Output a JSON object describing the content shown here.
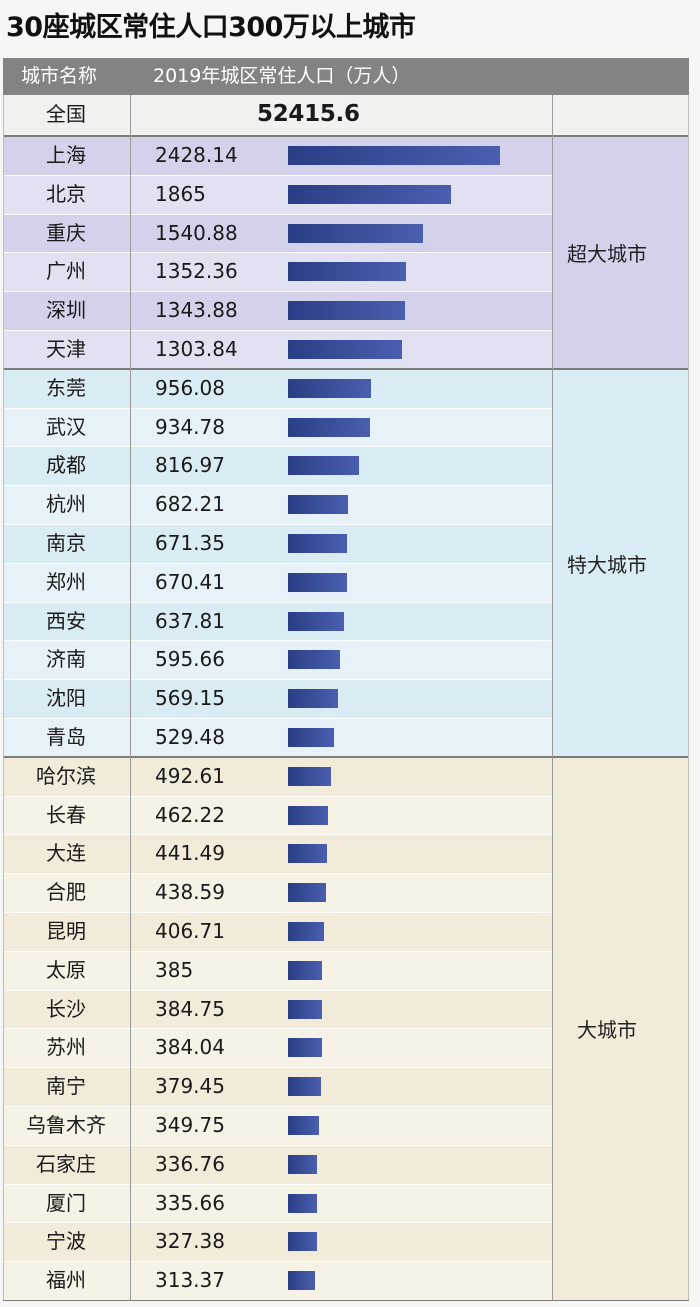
{
  "title": "30座城区常住人口300万以上城市",
  "header": {
    "city_col": "城市名称",
    "pop_col": "2019年城区常住人口（万人）"
  },
  "total": {
    "label": "全国",
    "value": "52415.6"
  },
  "colors": {
    "bar": "#34498f",
    "super_bg": "#d3d2ea",
    "mega_bg": "#d9ecf4",
    "large_bg": "#f2ebd9"
  },
  "chart_data": {
    "type": "bar",
    "orientation": "horizontal",
    "title": "30座城区常住人口300万以上城市",
    "value_label": "2019年城区常住人口（万人）",
    "groups": [
      {
        "name": "超大城市",
        "rows": [
          {
            "city": "上海",
            "value": "2428.14"
          },
          {
            "city": "北京",
            "value": "1865"
          },
          {
            "city": "重庆",
            "value": "1540.88"
          },
          {
            "city": "广州",
            "value": "1352.36"
          },
          {
            "city": "深圳",
            "value": "1343.88"
          },
          {
            "city": "天津",
            "value": "1303.84"
          }
        ]
      },
      {
        "name": "特大城市",
        "rows": [
          {
            "city": "东莞",
            "value": "956.08"
          },
          {
            "city": "武汉",
            "value": "934.78"
          },
          {
            "city": "成都",
            "value": "816.97"
          },
          {
            "city": "杭州",
            "value": "682.21"
          },
          {
            "city": "南京",
            "value": "671.35"
          },
          {
            "city": "郑州",
            "value": "670.41"
          },
          {
            "city": "西安",
            "value": "637.81"
          },
          {
            "city": "济南",
            "value": "595.66"
          },
          {
            "city": "沈阳",
            "value": "569.15"
          },
          {
            "city": "青岛",
            "value": "529.48"
          }
        ]
      },
      {
        "name": "大城市",
        "rows": [
          {
            "city": "哈尔滨",
            "value": "492.61"
          },
          {
            "city": "长春",
            "value": "462.22"
          },
          {
            "city": "大连",
            "value": "441.49"
          },
          {
            "city": "合肥",
            "value": "438.59"
          },
          {
            "city": "昆明",
            "value": "406.71"
          },
          {
            "city": "太原",
            "value": "385"
          },
          {
            "city": "长沙",
            "value": "384.75"
          },
          {
            "city": "苏州",
            "value": "384.04"
          },
          {
            "city": "南宁",
            "value": "379.45"
          },
          {
            "city": "乌鲁木齐",
            "value": "349.75"
          },
          {
            "city": "石家庄",
            "value": "336.76"
          },
          {
            "city": "厦门",
            "value": "335.66"
          },
          {
            "city": "宁波",
            "value": "327.38"
          },
          {
            "city": "福州",
            "value": "313.37"
          }
        ]
      }
    ]
  }
}
